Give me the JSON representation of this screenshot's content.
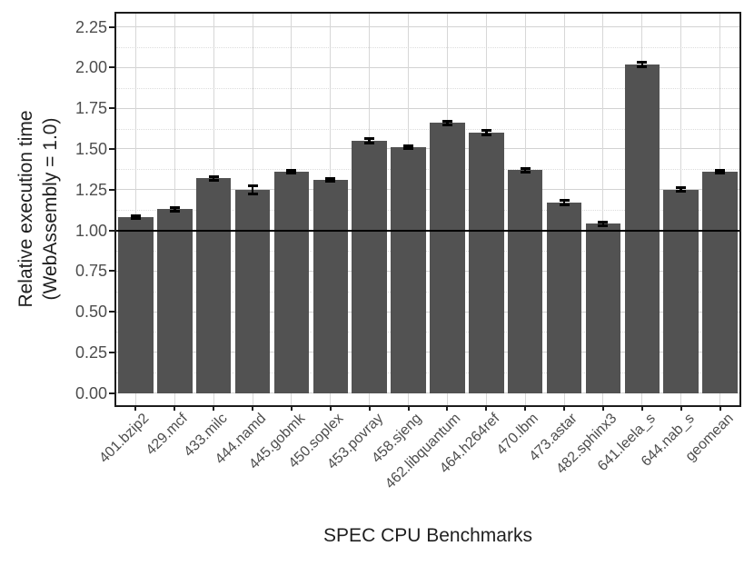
{
  "chart_data": {
    "type": "bar",
    "title": "",
    "xlabel": "SPEC CPU Benchmarks",
    "ylabel": "Relative execution time (WebAssembly = 1.0)",
    "ylabel_line1": "Relative execution time",
    "ylabel_line2": "(WebAssembly = 1.0)",
    "categories": [
      "401.bzip2",
      "429.mcf",
      "433.milc",
      "444.namd",
      "445.gobmk",
      "450.soplex",
      "453.povray",
      "458.sjeng",
      "462.libquantum",
      "464.h264ref",
      "470.lbm",
      "473.astar",
      "482.sphinx3",
      "641.leela_s",
      "644.nab_s",
      "geomean"
    ],
    "values": [
      1.08,
      1.13,
      1.32,
      1.25,
      1.36,
      1.31,
      1.55,
      1.51,
      1.66,
      1.6,
      1.37,
      1.17,
      1.04,
      2.02,
      1.25,
      1.36
    ],
    "errors": [
      0.01,
      0.01,
      0.012,
      0.025,
      0.01,
      0.01,
      0.015,
      0.01,
      0.01,
      0.015,
      0.01,
      0.012,
      0.01,
      0.012,
      0.012,
      0.01
    ],
    "reference_line": 1.0,
    "ylim": [
      -0.075,
      2.332
    ],
    "yticks": [
      0.0,
      0.25,
      0.5,
      0.75,
      1.0,
      1.25,
      1.5,
      1.75,
      2.0,
      2.25
    ],
    "ytick_labels": [
      "0.00",
      "0.25",
      "0.50",
      "0.75",
      "1.00",
      "1.25",
      "1.50",
      "1.75",
      "2.00",
      "2.25"
    ],
    "minor_tick_step": 0.125,
    "grid": "major-solid-minor-dotted",
    "legend": "none",
    "bar_color": "#525252",
    "error_color": "#000000",
    "grid_major_color": "#d2d2d2",
    "grid_minor_color": "#dcdcdc",
    "vgrid_color": "#d7d7d7",
    "spine_color": "#1c1c1c",
    "tick_label_color": "#4d4d4d",
    "axis_title_color": "#1f1f1f",
    "background_color": "#ffffff"
  }
}
